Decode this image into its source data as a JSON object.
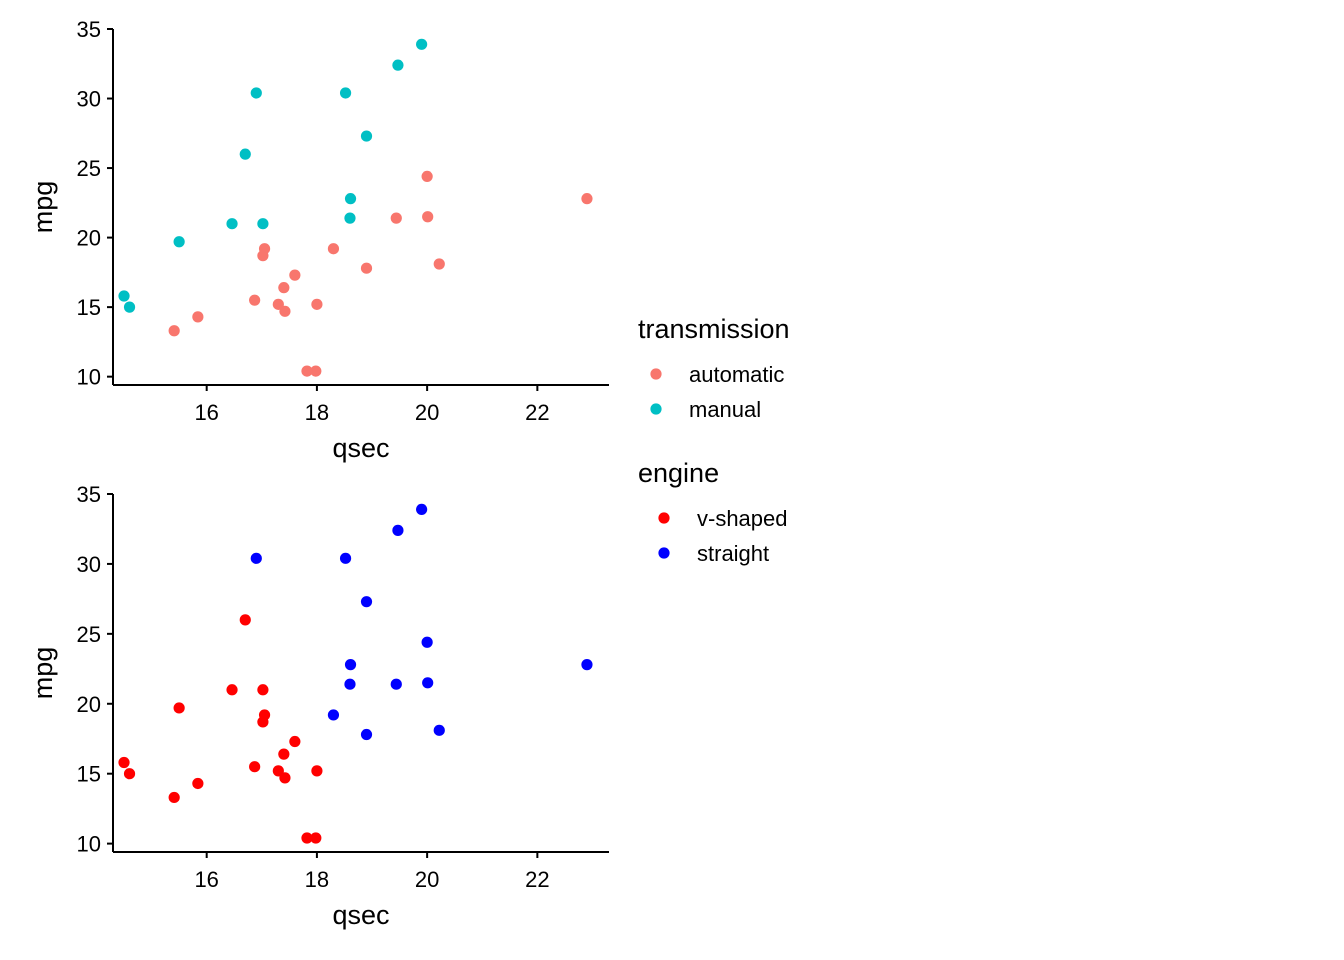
{
  "chart_data": [
    {
      "type": "scatter",
      "xlabel": "qsec",
      "ylabel": "mpg",
      "xlim": [
        14.3,
        23.3
      ],
      "ylim": [
        9.4,
        35
      ],
      "xticks": [
        16,
        18,
        20,
        22
      ],
      "yticks": [
        10,
        15,
        20,
        25,
        30,
        35
      ],
      "grid": false,
      "legend": {
        "title": "transmission",
        "position": "right",
        "entries": [
          {
            "label": "automatic",
            "color": "#F8766D"
          },
          {
            "label": "manual",
            "color": "#00BFC4"
          }
        ]
      },
      "series": [
        {
          "name": "automatic",
          "color": "#F8766D",
          "points": [
            [
              19.44,
              21.4
            ],
            [
              17.02,
              18.7
            ],
            [
              20.22,
              18.1
            ],
            [
              15.84,
              14.3
            ],
            [
              20.0,
              24.4
            ],
            [
              22.9,
              22.8
            ],
            [
              18.3,
              19.2
            ],
            [
              18.9,
              17.8
            ],
            [
              17.4,
              16.4
            ],
            [
              17.6,
              17.3
            ],
            [
              18.0,
              15.2
            ],
            [
              17.98,
              10.4
            ],
            [
              17.82,
              10.4
            ],
            [
              17.42,
              14.7
            ],
            [
              20.01,
              21.5
            ],
            [
              16.87,
              15.5
            ],
            [
              17.3,
              15.2
            ],
            [
              15.41,
              13.3
            ],
            [
              17.05,
              19.2
            ]
          ]
        },
        {
          "name": "manual",
          "color": "#00BFC4",
          "points": [
            [
              16.46,
              21.0
            ],
            [
              17.02,
              21.0
            ],
            [
              18.61,
              22.8
            ],
            [
              19.47,
              32.4
            ],
            [
              18.52,
              30.4
            ],
            [
              19.9,
              33.9
            ],
            [
              18.9,
              27.3
            ],
            [
              16.7,
              26.0
            ],
            [
              16.9,
              30.4
            ],
            [
              14.5,
              15.8
            ],
            [
              15.5,
              19.7
            ],
            [
              14.6,
              15.0
            ],
            [
              18.6,
              21.4
            ]
          ]
        }
      ]
    },
    {
      "type": "scatter",
      "xlabel": "qsec",
      "ylabel": "mpg",
      "xlim": [
        14.3,
        23.3
      ],
      "ylim": [
        9.4,
        35
      ],
      "xticks": [
        16,
        18,
        20,
        22
      ],
      "yticks": [
        10,
        15,
        20,
        25,
        30,
        35
      ],
      "grid": false,
      "legend": {
        "title": "engine",
        "position": "right",
        "entries": [
          {
            "label": "v-shaped",
            "color": "#FF0000"
          },
          {
            "label": "straight",
            "color": "#0000FF"
          }
        ]
      },
      "series": [
        {
          "name": "v-shaped",
          "color": "#FF0000",
          "points": [
            [
              16.46,
              21.0
            ],
            [
              17.02,
              21.0
            ],
            [
              17.02,
              18.7
            ],
            [
              15.84,
              14.3
            ],
            [
              17.4,
              16.4
            ],
            [
              17.6,
              17.3
            ],
            [
              18.0,
              15.2
            ],
            [
              17.98,
              10.4
            ],
            [
              17.82,
              10.4
            ],
            [
              17.42,
              14.7
            ],
            [
              16.87,
              15.5
            ],
            [
              17.3,
              15.2
            ],
            [
              15.41,
              13.3
            ],
            [
              17.05,
              19.2
            ],
            [
              16.7,
              26.0
            ],
            [
              14.5,
              15.8
            ],
            [
              15.5,
              19.7
            ],
            [
              14.6,
              15.0
            ]
          ]
        },
        {
          "name": "straight",
          "color": "#0000FF",
          "points": [
            [
              18.61,
              22.8
            ],
            [
              19.44,
              21.4
            ],
            [
              20.22,
              18.1
            ],
            [
              20.0,
              24.4
            ],
            [
              22.9,
              22.8
            ],
            [
              18.3,
              19.2
            ],
            [
              18.9,
              17.8
            ],
            [
              19.47,
              32.4
            ],
            [
              18.52,
              30.4
            ],
            [
              19.9,
              33.9
            ],
            [
              20.01,
              21.5
            ],
            [
              18.9,
              27.3
            ],
            [
              16.9,
              30.4
            ],
            [
              18.6,
              21.4
            ]
          ]
        }
      ]
    }
  ]
}
